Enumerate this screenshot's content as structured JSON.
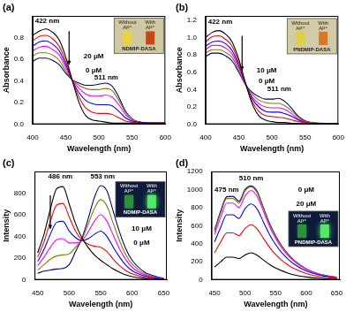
{
  "chart_data": [
    {
      "type": "line",
      "title": "(a)",
      "x_label": "Wavelength (nm)",
      "y_label": "Absorbance",
      "xlim": [
        400,
        600
      ],
      "xticks": [
        400,
        450,
        500,
        550,
        600
      ],
      "ylim": [
        0,
        1.0
      ],
      "yticks": [
        {
          "value": 0,
          "label": "0.0"
        },
        0.2,
        0.4,
        0.6,
        0.8
      ],
      "grid": false,
      "x": [
        400,
        410,
        420,
        430,
        440,
        450,
        460,
        470,
        480,
        490,
        500,
        510,
        520,
        530,
        540,
        550,
        560,
        580,
        600
      ],
      "series": [
        {
          "color": "#000000",
          "values": [
            0.82,
            0.86,
            0.88,
            0.85,
            0.78,
            0.62,
            0.4,
            0.2,
            0.08,
            0.04,
            0.03,
            0.02,
            0.01,
            0.01,
            0.01,
            0.01,
            0.01,
            0.01,
            0.01
          ]
        },
        {
          "color": "#ff0000",
          "values": [
            0.77,
            0.81,
            0.82,
            0.79,
            0.72,
            0.58,
            0.4,
            0.25,
            0.15,
            0.11,
            0.1,
            0.1,
            0.09,
            0.06,
            0.03,
            0.02,
            0.01,
            0.01,
            0.01
          ]
        },
        {
          "color": "#0000ff",
          "values": [
            0.72,
            0.76,
            0.77,
            0.74,
            0.68,
            0.55,
            0.4,
            0.29,
            0.22,
            0.19,
            0.18,
            0.18,
            0.17,
            0.12,
            0.06,
            0.03,
            0.02,
            0.01,
            0.01
          ]
        },
        {
          "color": "#ff00ff",
          "values": [
            0.68,
            0.71,
            0.72,
            0.69,
            0.64,
            0.52,
            0.41,
            0.33,
            0.28,
            0.26,
            0.26,
            0.27,
            0.25,
            0.18,
            0.09,
            0.04,
            0.02,
            0.01,
            0.01
          ]
        },
        {
          "color": "#808000",
          "values": [
            0.63,
            0.66,
            0.66,
            0.64,
            0.59,
            0.49,
            0.41,
            0.36,
            0.33,
            0.32,
            0.32,
            0.33,
            0.31,
            0.22,
            0.11,
            0.05,
            0.02,
            0.01,
            0.01
          ]
        },
        {
          "color": "#000080",
          "values": [
            0.58,
            0.61,
            0.61,
            0.59,
            0.55,
            0.47,
            0.41,
            0.38,
            0.36,
            0.36,
            0.37,
            0.38,
            0.35,
            0.25,
            0.12,
            0.05,
            0.02,
            0.01,
            0.01
          ]
        }
      ],
      "annotations": [
        "422 nm",
        "511 nm",
        "20 μM",
        "0 μM"
      ],
      "inset": {
        "labels": [
          [
            "Without",
            "Al³⁺"
          ],
          [
            "With",
            "Al³⁺"
          ]
        ],
        "caption": "NDMIP-DASA"
      }
    },
    {
      "type": "line",
      "title": "(b)",
      "x_label": "Wavelength (nm)",
      "y_label": "Absorbance",
      "xlim": [
        400,
        600
      ],
      "xticks": [
        400,
        450,
        500,
        550,
        600
      ],
      "ylim": [
        0,
        1.25
      ],
      "yticks": [
        {
          "value": 0,
          "label": "0.0"
        },
        0.2,
        0.4,
        0.6,
        0.8,
        {
          "value": 1,
          "label": "1.0"
        },
        1.2
      ],
      "grid": false,
      "x": [
        400,
        410,
        420,
        430,
        440,
        450,
        460,
        470,
        480,
        490,
        500,
        510,
        520,
        530,
        540,
        550,
        560,
        580,
        600
      ],
      "series": [
        {
          "color": "#000000",
          "values": [
            1.0,
            1.06,
            1.08,
            1.04,
            0.95,
            0.75,
            0.48,
            0.24,
            0.1,
            0.05,
            0.03,
            0.02,
            0.02,
            0.01,
            0.01,
            0.01,
            0.01,
            0.01,
            0.01
          ]
        },
        {
          "color": "#ff0000",
          "values": [
            0.95,
            1.01,
            1.02,
            0.98,
            0.9,
            0.71,
            0.47,
            0.27,
            0.15,
            0.1,
            0.09,
            0.08,
            0.07,
            0.05,
            0.03,
            0.02,
            0.01,
            0.01,
            0.01
          ]
        },
        {
          "color": "#0000ff",
          "values": [
            0.9,
            0.95,
            0.96,
            0.93,
            0.85,
            0.68,
            0.47,
            0.3,
            0.2,
            0.15,
            0.14,
            0.14,
            0.12,
            0.09,
            0.05,
            0.02,
            0.01,
            0.01,
            0.01
          ]
        },
        {
          "color": "#ff00ff",
          "values": [
            0.86,
            0.91,
            0.91,
            0.88,
            0.81,
            0.65,
            0.46,
            0.32,
            0.24,
            0.2,
            0.19,
            0.19,
            0.17,
            0.12,
            0.06,
            0.03,
            0.01,
            0.01,
            0.01
          ]
        },
        {
          "color": "#808000",
          "values": [
            0.82,
            0.86,
            0.86,
            0.83,
            0.77,
            0.62,
            0.46,
            0.35,
            0.28,
            0.25,
            0.24,
            0.24,
            0.21,
            0.15,
            0.08,
            0.03,
            0.02,
            0.01,
            0.01
          ]
        },
        {
          "color": "#000080",
          "values": [
            0.78,
            0.82,
            0.82,
            0.79,
            0.73,
            0.6,
            0.46,
            0.37,
            0.32,
            0.29,
            0.29,
            0.3,
            0.26,
            0.18,
            0.09,
            0.04,
            0.02,
            0.01,
            0.01
          ]
        }
      ],
      "annotations": [
        "422 nm",
        "511 nm",
        "10 μM",
        "0 μM"
      ],
      "inset": {
        "labels": [
          [
            "Without",
            "Al³⁺"
          ],
          [
            "With",
            "Al³⁺"
          ]
        ],
        "caption": "PNDMIP-DASA"
      }
    },
    {
      "type": "line",
      "title": "(c)",
      "x_label": "Wavelength (nm)",
      "y_label": "Intensity",
      "xlim": [
        445,
        655
      ],
      "xticks": [
        450,
        500,
        550,
        600,
        650
      ],
      "ylim": [
        0,
        1000
      ],
      "yticks": [
        0,
        200,
        400,
        600,
        800
      ],
      "grid": false,
      "x": [
        450,
        460,
        470,
        480,
        490,
        500,
        510,
        520,
        530,
        540,
        550,
        560,
        570,
        580,
        590,
        600,
        620,
        640,
        650
      ],
      "series": [
        {
          "color": "#000000",
          "values": [
            250,
            420,
            650,
            840,
            860,
            700,
            520,
            390,
            300,
            230,
            180,
            140,
            100,
            70,
            45,
            30,
            12,
            5,
            3
          ]
        },
        {
          "color": "#ff0000",
          "values": [
            210,
            350,
            540,
            690,
            705,
            580,
            450,
            370,
            330,
            310,
            300,
            260,
            190,
            130,
            85,
            55,
            22,
            9,
            5
          ]
        },
        {
          "color": "#0000ff",
          "values": [
            170,
            280,
            420,
            530,
            540,
            450,
            390,
            360,
            380,
            420,
            450,
            400,
            300,
            210,
            135,
            85,
            35,
            14,
            8
          ]
        },
        {
          "color": "#ff00ff",
          "values": [
            130,
            210,
            300,
            370,
            380,
            340,
            340,
            360,
            440,
            540,
            600,
            540,
            410,
            285,
            185,
            115,
            45,
            18,
            10
          ]
        },
        {
          "color": "#808000",
          "values": [
            90,
            140,
            190,
            220,
            230,
            240,
            300,
            370,
            510,
            660,
            740,
            680,
            520,
            360,
            230,
            145,
            55,
            22,
            12
          ]
        },
        {
          "color": "#000080",
          "values": [
            60,
            80,
            90,
            100,
            105,
            140,
            260,
            380,
            560,
            760,
            870,
            820,
            630,
            440,
            285,
            180,
            70,
            28,
            15
          ]
        }
      ],
      "annotations": [
        "486 nm",
        "553 nm",
        "10 μM",
        "0 μM"
      ],
      "inset": {
        "labels": [
          [
            "Without",
            "Al³⁺"
          ],
          [
            "With",
            "Al³⁺"
          ]
        ],
        "caption": "NDMIP-DASA"
      }
    },
    {
      "type": "line",
      "title": "(d)",
      "x_label": "Wavelength (nm)",
      "y_label": "Intensity",
      "xlim": [
        445,
        655
      ],
      "xticks": [
        450,
        500,
        550,
        600,
        650
      ],
      "ylim": [
        0,
        1200
      ],
      "yticks": [
        0,
        200,
        400,
        600,
        800,
        1000,
        1200
      ],
      "grid": false,
      "x": [
        450,
        460,
        470,
        480,
        490,
        500,
        510,
        520,
        530,
        540,
        550,
        560,
        570,
        580,
        600,
        620,
        640,
        650
      ],
      "series": [
        {
          "color": "#000000",
          "values": [
            140,
            200,
            250,
            250,
            235,
            275,
            300,
            270,
            220,
            170,
            130,
            100,
            75,
            55,
            32,
            18,
            10,
            8
          ]
        },
        {
          "color": "#ff0000",
          "values": [
            300,
            420,
            520,
            520,
            490,
            570,
            610,
            560,
            460,
            360,
            280,
            215,
            165,
            125,
            70,
            38,
            21,
            16
          ]
        },
        {
          "color": "#0000ff",
          "values": [
            420,
            580,
            720,
            720,
            680,
            790,
            840,
            780,
            640,
            500,
            390,
            300,
            230,
            175,
            98,
            54,
            30,
            23
          ]
        },
        {
          "color": "#ff00ff",
          "values": [
            500,
            690,
            850,
            850,
            800,
            930,
            990,
            920,
            760,
            590,
            460,
            355,
            272,
            205,
            115,
            63,
            36,
            27
          ]
        },
        {
          "color": "#808000",
          "values": [
            530,
            740,
            900,
            900,
            850,
            985,
            1030,
            960,
            790,
            615,
            480,
            370,
            283,
            215,
            120,
            66,
            37,
            28
          ]
        },
        {
          "color": "#000080",
          "values": [
            550,
            760,
            920,
            925,
            870,
            1000,
            1040,
            975,
            800,
            625,
            488,
            376,
            288,
            218,
            122,
            67,
            38,
            29
          ]
        }
      ],
      "annotations": [
        "475 nm",
        "510 nm",
        "0 μM",
        "20 μM"
      ],
      "inset": {
        "labels": [
          [
            "Without",
            "Al³⁺"
          ],
          [
            "With",
            "Al³⁺"
          ]
        ],
        "caption": "PNDMIP-DASA"
      }
    }
  ]
}
